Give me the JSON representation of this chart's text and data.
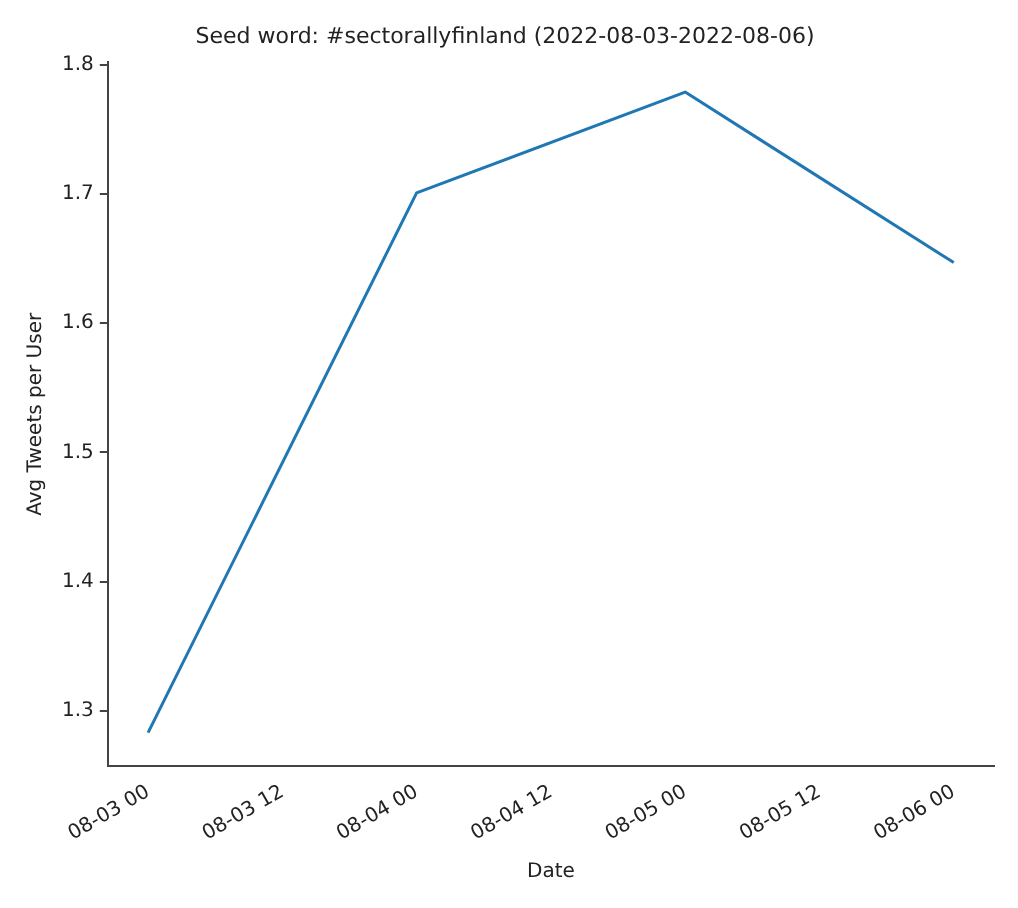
{
  "chart_data": {
    "type": "line",
    "title": "Seed word: #sectorallyfinland (2022-08-03-2022-08-06)",
    "xlabel": "Date",
    "ylabel": "Avg Tweets per User",
    "x": [
      "2022-08-03T00:00",
      "2022-08-04T00:00",
      "2022-08-05T00:00",
      "2022-08-06T00:00"
    ],
    "series": [
      {
        "color": "#1f77b4",
        "values": [
          1.283,
          1.701,
          1.779,
          1.647
        ]
      }
    ],
    "xlim": [
      "2022-08-02T20:24",
      "2022-08-06T03:36"
    ],
    "xticks": [
      {
        "value": "2022-08-03T00:00",
        "label": "08-03 00"
      },
      {
        "value": "2022-08-03T12:00",
        "label": "08-03 12"
      },
      {
        "value": "2022-08-04T00:00",
        "label": "08-04 00"
      },
      {
        "value": "2022-08-04T12:00",
        "label": "08-04 12"
      },
      {
        "value": "2022-08-05T00:00",
        "label": "08-05 00"
      },
      {
        "value": "2022-08-05T12:00",
        "label": "08-05 12"
      },
      {
        "value": "2022-08-06T00:00",
        "label": "08-06 00"
      }
    ],
    "ylim": [
      1.257,
      1.802
    ],
    "yticks": [
      1.3,
      1.4,
      1.5,
      1.6,
      1.7,
      1.8
    ],
    "grid": false,
    "legend": false,
    "marker": "none",
    "line_style": "solid"
  }
}
